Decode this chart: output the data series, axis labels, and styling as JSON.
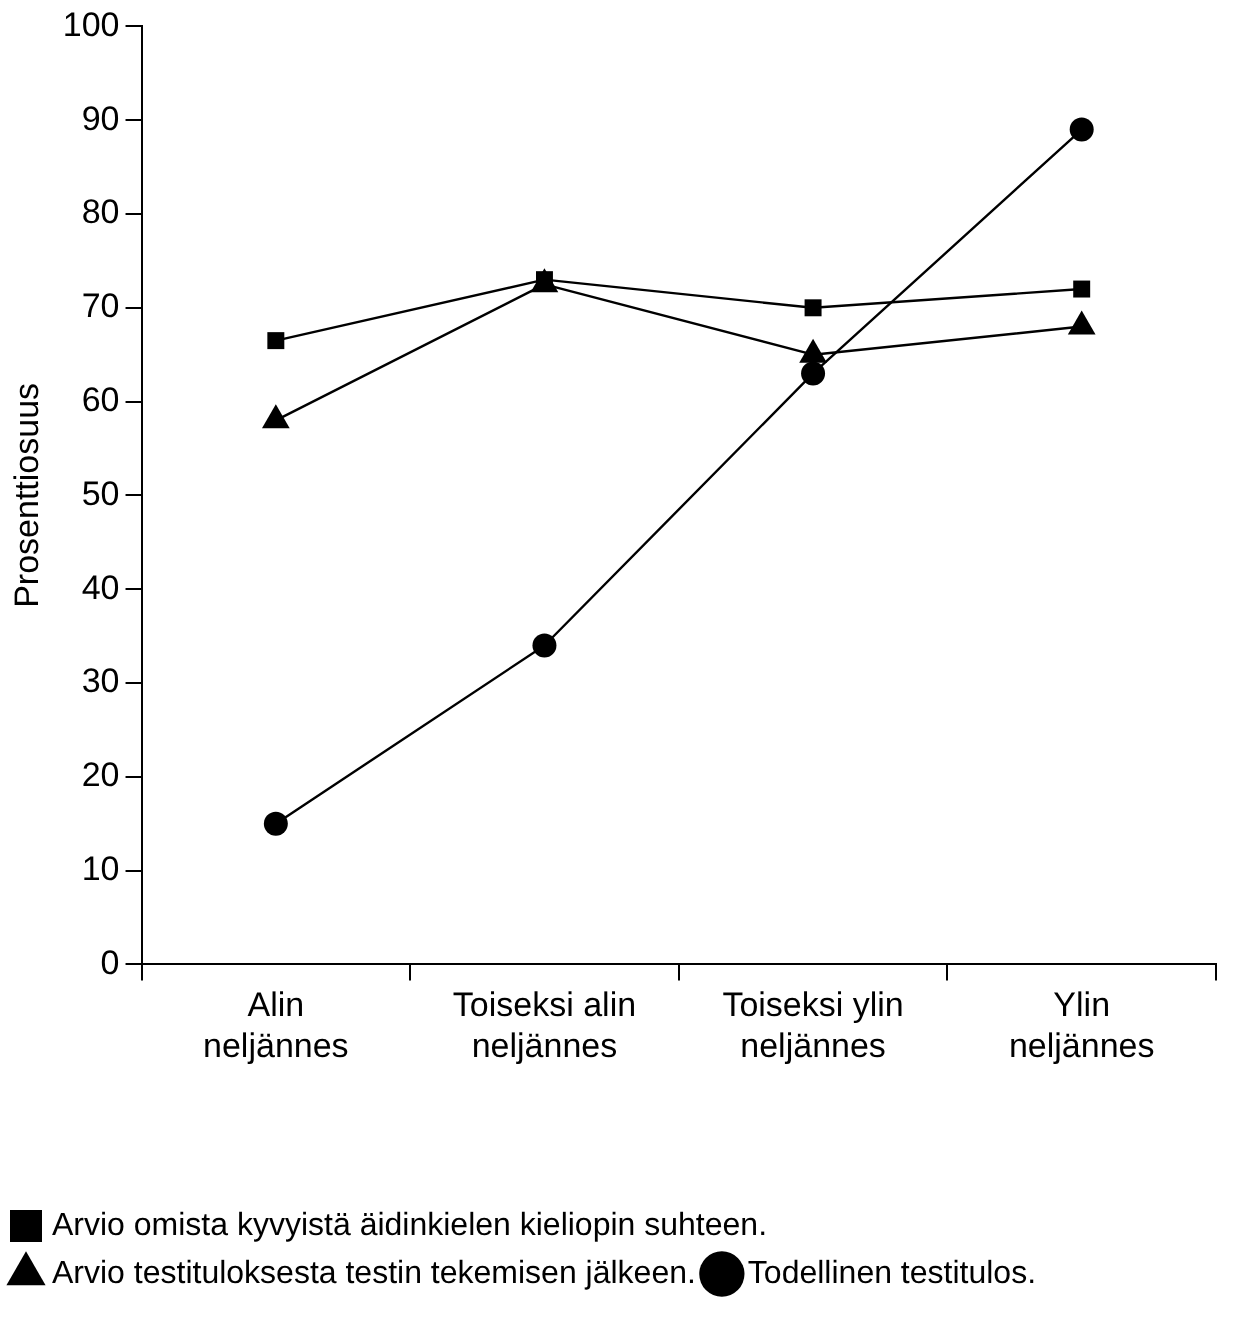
{
  "chart_data": {
    "type": "line",
    "ylabel": "Prosenttiosuus",
    "categories": [
      "Alin neljännes",
      "Toiseksi alin neljännes",
      "Toiseksi ylin neljännes",
      "Ylin neljännes"
    ],
    "series": [
      {
        "name": "Arvio omista kyvyistä äidinkielen kieliopin suhteen.",
        "color": "#000000",
        "marker": "square",
        "values": [
          66.5,
          73,
          70,
          72
        ]
      },
      {
        "name": "Arvio testituloksesta testin tekemisen jälkeen.",
        "color": "#000000",
        "marker": "triangle",
        "values": [
          58,
          72.5,
          65,
          68
        ]
      },
      {
        "name": "Todellinen testitulos.",
        "color": "#000000",
        "marker": "circle",
        "values": [
          15,
          34,
          63,
          89
        ]
      }
    ],
    "ylim": [
      0,
      100
    ],
    "yticks": [
      0,
      10,
      20,
      30,
      40,
      50,
      60,
      70,
      80,
      90,
      100
    ],
    "grid": false,
    "legend": "bottom",
    "line_style": "solid"
  }
}
